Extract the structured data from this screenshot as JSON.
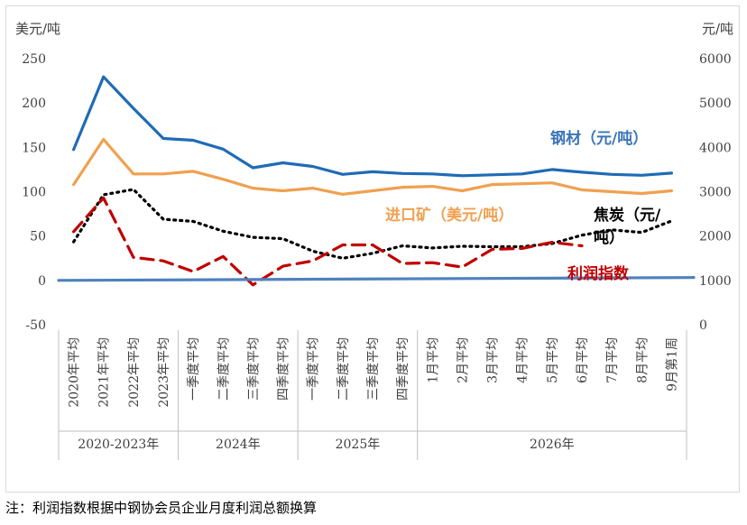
{
  "chart_data": {
    "type": "line",
    "left_unit": "美元/吨",
    "right_unit": "元/吨",
    "left_ticks": [
      "-50",
      "0",
      "50",
      "100",
      "150",
      "200",
      "250"
    ],
    "right_ticks": [
      "0",
      "1000",
      "2000",
      "3000",
      "4000",
      "5000",
      "6000"
    ],
    "left_ylim": [
      -50,
      250
    ],
    "right_ylim": [
      0,
      6000
    ],
    "categories": [
      "2020年平均",
      "2021年平均",
      "2022年平均",
      "2023年平均",
      "一季度平均",
      "二季度平均",
      "三季度平均",
      "四季度平均",
      "一季度平均",
      "二季度平均",
      "三季度平均",
      "四季度平均",
      "1月平均",
      "2月平均",
      "3月平均",
      "4月平均",
      "5月平均",
      "6月平均",
      "7月平均",
      "8月平均",
      "9月第1周"
    ],
    "groups": [
      {
        "label": "2020-2023年",
        "start": 0,
        "end": 3
      },
      {
        "label": "2024年",
        "start": 4,
        "end": 7
      },
      {
        "label": "2025年",
        "start": 8,
        "end": 11
      },
      {
        "label": "2026年",
        "start": 12,
        "end": 20
      }
    ],
    "series": [
      {
        "name": "钢材（元/吨）",
        "axis": "right",
        "color": "#1f6bb6",
        "style": "solid",
        "values": [
          3950,
          5590,
          4880,
          4200,
          4160,
          3960,
          3540,
          3650,
          3570,
          3390,
          3450,
          3410,
          3400,
          3360,
          3380,
          3400,
          3500,
          3440,
          3390,
          3370,
          3420
        ]
      },
      {
        "name": "进口矿（美元/吨）",
        "axis": "left",
        "color": "#f0a050",
        "style": "solid",
        "values": [
          108,
          159,
          120,
          120,
          123,
          114,
          104,
          101,
          104,
          97,
          101,
          105,
          106,
          101,
          108,
          109,
          110,
          102,
          100,
          98,
          101
        ]
      },
      {
        "name": "焦炭（元/吨）",
        "axis": "right",
        "color": "#000000",
        "style": "dotted",
        "values": [
          1870,
          2930,
          3050,
          2380,
          2330,
          2110,
          1970,
          1940,
          1660,
          1500,
          1610,
          1780,
          1730,
          1770,
          1760,
          1760,
          1830,
          2020,
          2140,
          2080,
          2340
        ]
      },
      {
        "name": "利润指数",
        "axis": "left",
        "color": "#c00000",
        "style": "dashed",
        "values": [
          55,
          93,
          26,
          22,
          10,
          27,
          -5,
          16,
          22,
          40,
          40,
          19,
          20,
          15,
          35,
          36,
          43,
          39,
          null,
          null,
          null
        ]
      },
      {
        "name": "",
        "axis": "right",
        "color": "#4f81bd",
        "style": "solid",
        "values": [
          1000,
          1007,
          1010,
          1014,
          1017,
          1020,
          1023,
          1026,
          1029,
          1032,
          1035,
          1038,
          1041,
          1044,
          1047,
          1050,
          1053,
          1056,
          1059,
          1062,
          1065
        ]
      }
    ],
    "series_labels": [
      {
        "text": "钢材（元/吨）",
        "color": "#3a75b8"
      },
      {
        "text": "进口矿（美元/吨）",
        "color": "#f0a050"
      },
      {
        "text": "焦炭（元/",
        "color": "#000000"
      },
      {
        "text": "吨）",
        "color": "#000000"
      },
      {
        "text": "利润指数",
        "color": "#c00000"
      }
    ]
  },
  "footnote": "注：利润指数根据中钢协会员企业月度利润总额换算"
}
